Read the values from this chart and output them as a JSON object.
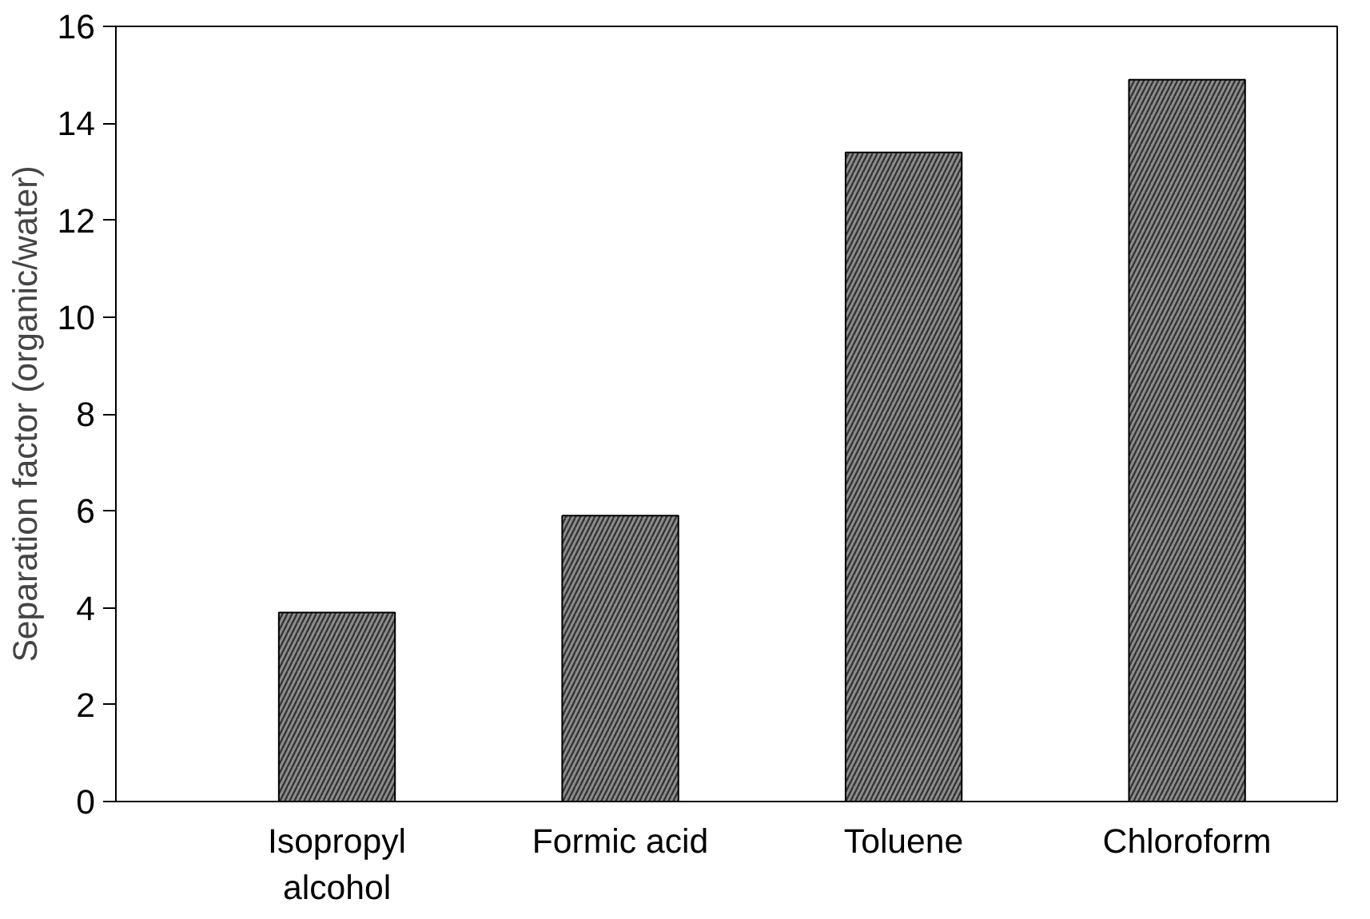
{
  "chart_data": {
    "type": "bar",
    "ylabel": "Separation factor (organic/water)",
    "categories": [
      "Isopropyl alcohol",
      "Formic acid",
      "Toluene",
      "Chloroform"
    ],
    "values": [
      3.9,
      5.9,
      13.4,
      14.9
    ],
    "color": "#8c8c8c",
    "ylim": [
      0,
      16
    ],
    "yticks": [
      0,
      2,
      4,
      6,
      8,
      10,
      12,
      14,
      16
    ],
    "grid": false
  }
}
